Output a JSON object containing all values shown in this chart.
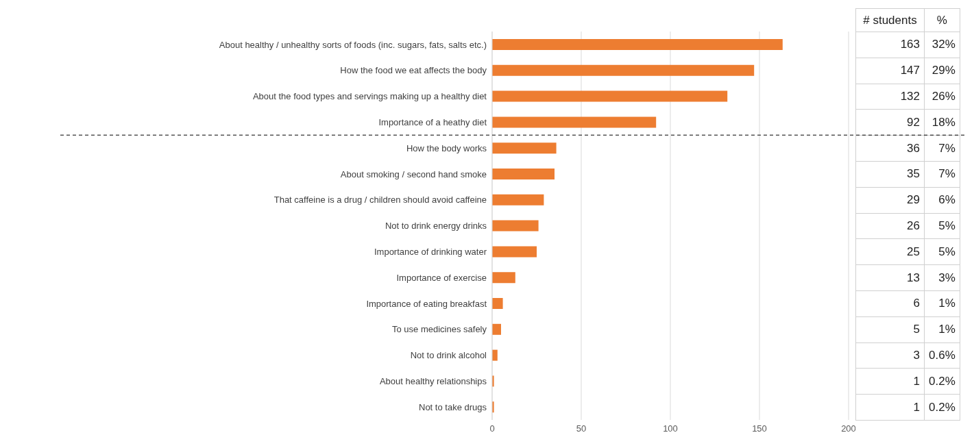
{
  "chart_data": {
    "type": "bar",
    "orientation": "horizontal",
    "categories": [
      "About healthy / unhealthy sorts of foods (inc. sugars, fats, salts etc.)",
      "How the food we eat affects the body",
      "About the food types and servings making up a healthy diet",
      "Importance of a heathy diet",
      "How the body works",
      "About smoking / second hand smoke",
      "That caffeine is a drug / children should avoid caffeine",
      "Not to drink energy drinks",
      "Importance of drinking water",
      "Importance of exercise",
      "Importance of eating breakfast",
      "To use medicines safely",
      "Not to drink alcohol",
      "About healthy relationships",
      "Not to take drugs"
    ],
    "values": [
      163,
      147,
      132,
      92,
      36,
      35,
      29,
      26,
      25,
      13,
      6,
      5,
      3,
      1,
      1
    ],
    "data_labels": true,
    "color": "#ed7d31",
    "xlim": [
      0,
      200
    ],
    "xticks": [
      0,
      50,
      100,
      150,
      200
    ],
    "grid": "x",
    "annotations": [
      "# students",
      "%",
      "32%",
      "29%",
      "26%",
      "18%",
      "7%",
      "7%",
      "6%",
      "5%",
      "5%",
      "3%",
      "1%",
      "1%",
      "0.6%",
      "0.2%",
      "0.2%"
    ]
  }
}
